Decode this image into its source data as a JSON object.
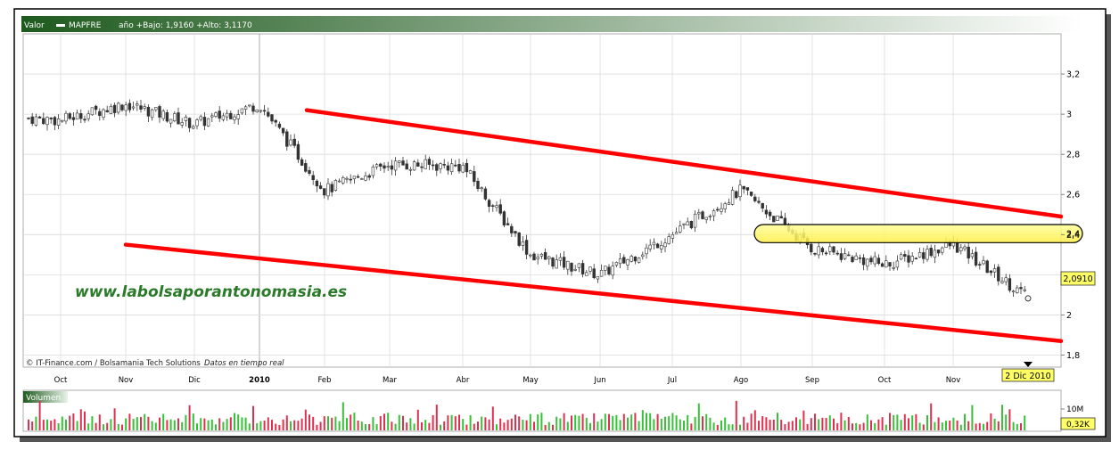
{
  "header": {
    "valor_label": "Valor",
    "ticker": "MAPFRE",
    "range_text": "año +Bajo: 1,9160 +Alto: 3,1170"
  },
  "watermark": "www.labolsaporantonomasia.es",
  "credits": "© IT-Finance.com / Bolsamania Tech Solutions",
  "realtime": "Datos en tiempo real",
  "volume_panel": {
    "label": "Volumen",
    "tick_label": "10M",
    "last_volume": "0,32K"
  },
  "colors": {
    "up": "#38c038",
    "down": "#e03050",
    "trendline": "#ff0000",
    "zone": "#ffff66",
    "header_start": "#1e5a1e",
    "header_end": "#ffffff"
  },
  "chart_data": {
    "type": "candlestick",
    "x_tick_labels": [
      "Oct",
      "Nov",
      "Dic",
      "2010",
      "Feb",
      "Mar",
      "Abr",
      "May",
      "Jun",
      "Jul",
      "Ago",
      "Sep",
      "Oct",
      "Nov"
    ],
    "y_ticks": [
      1.8,
      2.0,
      2.2,
      2.4,
      2.6,
      2.8,
      3.0,
      3.2
    ],
    "y_tick_labels": [
      "1,8",
      "2",
      "2,2",
      "2,4",
      "2,6",
      "2,8",
      "3",
      "3,2"
    ],
    "ylim": [
      1.74,
      3.4
    ],
    "year_low": 1.916,
    "year_high": 3.117,
    "last_price": 2.091,
    "last_price_label": "2,0910",
    "last_date_label": "2 Dic 2010",
    "series": [
      {
        "name": "MAPFRE",
        "close_path": [
          {
            "x": "Oct",
            "v": 2.97
          },
          {
            "x": "Nov",
            "v": 3.05
          },
          {
            "x": "Dic",
            "v": 2.95
          },
          {
            "x": "2010",
            "v": 3.05
          },
          {
            "x": "Feb",
            "v": 2.62
          },
          {
            "x": "Mar",
            "v": 2.75
          },
          {
            "x": "Abr",
            "v": 2.74
          },
          {
            "x": "May",
            "v": 2.3
          },
          {
            "x": "Jun",
            "v": 2.2
          },
          {
            "x": "Jul",
            "v": 2.4
          },
          {
            "x": "Ago",
            "v": 2.62
          },
          {
            "x": "Sep",
            "v": 2.33
          },
          {
            "x": "Oct",
            "v": 2.25
          },
          {
            "x": "Nov",
            "v": 2.35
          }
        ]
      }
    ],
    "annotations": {
      "upper_channel": {
        "from": {
          "x": "Feb",
          "v": 3.02
        },
        "to": {
          "x": "end",
          "v": 2.49
        }
      },
      "lower_channel": {
        "from": {
          "x": "Nov",
          "v": 2.35
        },
        "to": {
          "x": "end",
          "v": 1.87
        }
      },
      "resistance_zone": {
        "from": "Ago",
        "v_low": 2.36,
        "v_high": 2.45,
        "label": "2,4"
      }
    },
    "grid": true
  }
}
